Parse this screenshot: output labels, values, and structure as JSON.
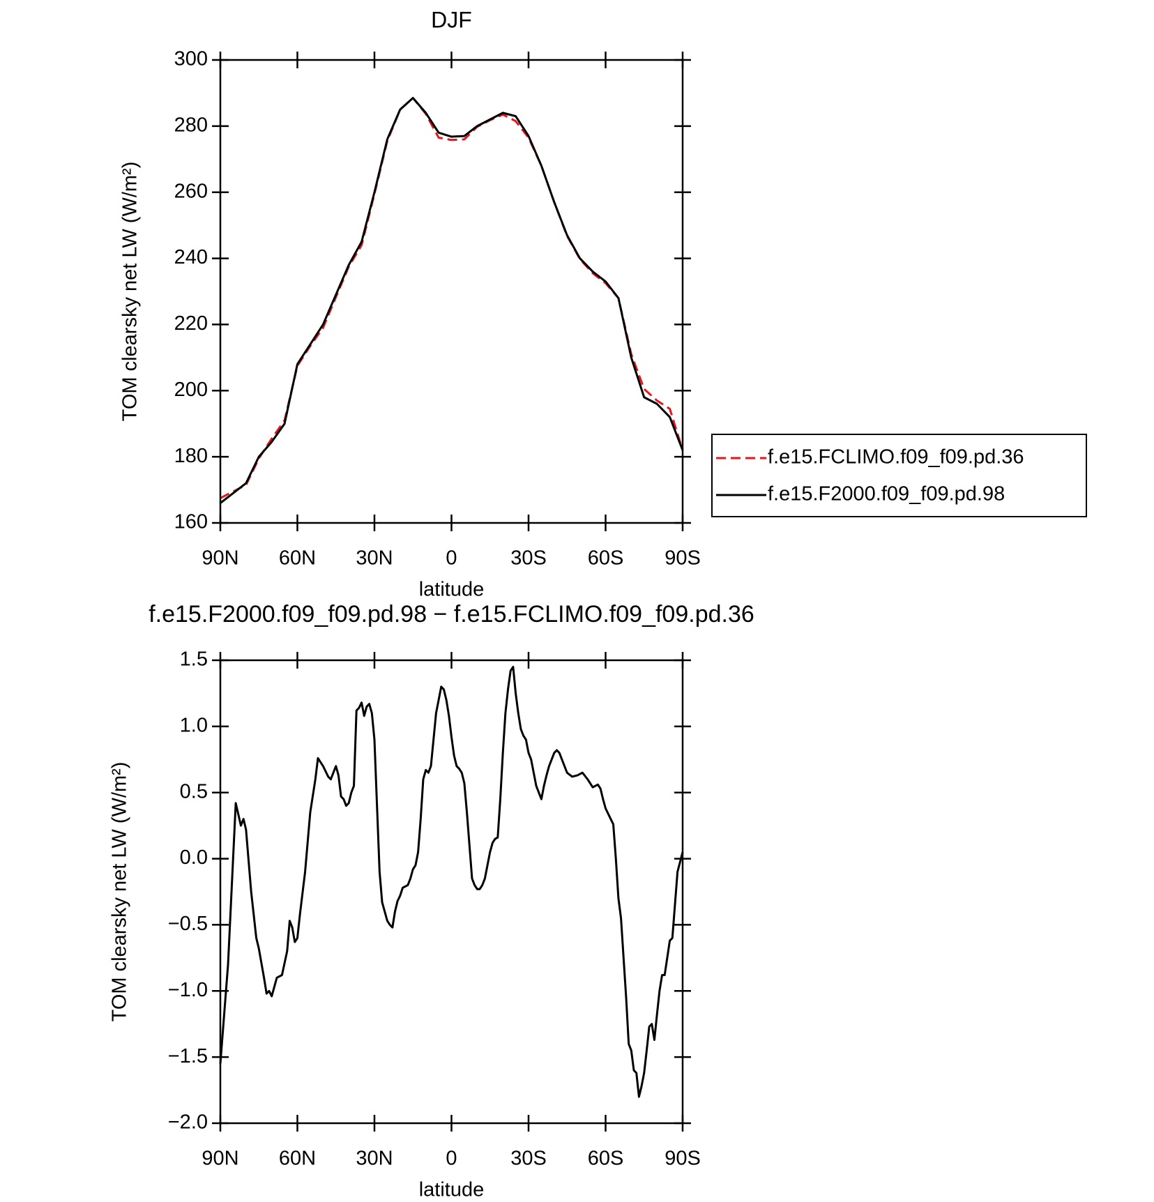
{
  "chart_data": [
    {
      "type": "line",
      "title": "DJF",
      "xlabel": "latitude",
      "ylabel": "TOM clearsky net LW (W/m²)",
      "xlim": [
        90,
        -90
      ],
      "xticks": [
        {
          "value": 90,
          "label": "90N"
        },
        {
          "value": 60,
          "label": "60N"
        },
        {
          "value": 30,
          "label": "30N"
        },
        0,
        {
          "value": -30,
          "label": "30S"
        },
        {
          "value": -60,
          "label": "60S"
        },
        {
          "value": -90,
          "label": "90S"
        }
      ],
      "ylim": [
        160,
        300
      ],
      "yticks": [
        160,
        180,
        200,
        220,
        240,
        260,
        280,
        300
      ],
      "legend": "right",
      "x": [
        90,
        85,
        80,
        75,
        70,
        65,
        60,
        55,
        50,
        45,
        40,
        35,
        30,
        25,
        20,
        15,
        10,
        5,
        0,
        -5,
        -10,
        -15,
        -20,
        -25,
        -30,
        -35,
        -40,
        -45,
        -50,
        -55,
        -60,
        -65,
        -70,
        -75,
        -80,
        -85,
        -90
      ],
      "series": [
        {
          "name": "f.e15.FCLIMO.f09_f09.pd.36",
          "color": "#e8161b",
          "line_style": "dashed",
          "values": [
            167.5,
            169.5,
            171.5,
            179.5,
            185.5,
            191,
            207.5,
            213.5,
            219,
            228.3,
            237.5,
            244,
            259.5,
            275.5,
            285,
            288.5,
            283.7,
            276.5,
            275.8,
            276,
            279.8,
            281.8,
            283.5,
            281.5,
            276.5,
            268,
            257,
            246.8,
            239.8,
            235.5,
            232.5,
            228,
            211,
            200.5,
            197,
            194.5,
            182
          ]
        },
        {
          "name": "f.e15.F2000.f09_f09.pd.98",
          "color": "#000000",
          "line_style": "solid",
          "values": [
            166,
            169,
            172,
            180,
            184.5,
            190,
            208,
            214,
            220,
            229,
            238,
            245,
            260,
            276,
            285,
            288.5,
            284,
            278,
            276.8,
            277,
            280,
            282,
            284,
            283,
            277,
            268,
            257,
            247,
            240,
            236,
            233,
            228,
            210,
            198,
            196,
            192,
            182
          ]
        }
      ]
    },
    {
      "type": "line",
      "title": "f.e15.F2000.f09_f09.pd.98 − f.e15.FCLIMO.f09_f09.pd.36",
      "xlabel": "latitude",
      "ylabel": "TOM clearsky net LW (W/m²)",
      "xlim": [
        90,
        -90
      ],
      "xticks": [
        {
          "value": 90,
          "label": "90N"
        },
        {
          "value": 60,
          "label": "60N"
        },
        {
          "value": 30,
          "label": "30N"
        },
        0,
        {
          "value": -30,
          "label": "30S"
        },
        {
          "value": -60,
          "label": "60S"
        },
        {
          "value": -90,
          "label": "90S"
        }
      ],
      "ylim": [
        -2.0,
        1.5
      ],
      "yticks": [
        {
          "value": -2.0,
          "label": "−2.0"
        },
        {
          "value": -1.5,
          "label": "−1.5"
        },
        {
          "value": -1.0,
          "label": "−1.0"
        },
        {
          "value": -0.5,
          "label": "−0.5"
        },
        {
          "value": 0.0,
          "label": "0.0"
        },
        0.5,
        {
          "value": 1.0,
          "label": "1.0"
        },
        1.5
      ],
      "x": [
        90,
        87,
        84,
        82,
        81,
        80,
        78,
        76,
        75,
        73,
        72,
        71,
        70,
        68,
        66,
        64,
        63,
        62,
        61,
        60,
        59,
        57,
        55,
        53,
        52,
        50,
        48,
        47,
        46,
        45,
        44,
        43,
        42,
        41,
        40,
        39,
        38,
        37,
        36,
        35,
        34,
        33,
        32,
        31,
        30,
        29,
        28,
        27,
        26,
        25,
        24,
        23,
        22,
        21,
        20,
        19,
        17,
        16,
        15,
        14,
        13,
        12,
        11,
        10,
        9,
        8,
        7,
        6,
        5,
        4,
        3,
        2,
        1,
        0,
        -1,
        -2,
        -3,
        -4,
        -5,
        -6,
        -7,
        -8,
        -9,
        -10,
        -11,
        -12,
        -13,
        -14,
        -15,
        -16,
        -17,
        -18,
        -19,
        -20,
        -21,
        -22,
        -23,
        -24,
        -25,
        -26,
        -27,
        -28,
        -29,
        -30,
        -31,
        -32,
        -33,
        -34,
        -35,
        -36,
        -37,
        -38,
        -40,
        -41,
        -42,
        -43,
        -44,
        -45,
        -47,
        -49,
        -51,
        -53,
        -55,
        -57,
        -58,
        -59,
        -60,
        -62,
        -63,
        -64,
        -65,
        -66,
        -67,
        -68,
        -69,
        -70,
        -71,
        -72,
        -73,
        -74,
        -75,
        -76,
        -77,
        -78,
        -79,
        -80,
        -81,
        -82,
        -83,
        -84,
        -85,
        -86,
        -87,
        -88,
        -90
      ],
      "series": [
        {
          "color": "#000000",
          "line_style": "solid",
          "values": [
            -1.55,
            -0.8,
            0.42,
            0.25,
            0.3,
            0.22,
            -0.25,
            -0.6,
            -0.68,
            -0.9,
            -1.02,
            -1.0,
            -1.04,
            -0.9,
            -0.88,
            -0.7,
            -0.47,
            -0.52,
            -0.63,
            -0.6,
            -0.42,
            -0.1,
            0.35,
            0.6,
            0.76,
            0.7,
            0.62,
            0.6,
            0.65,
            0.7,
            0.63,
            0.47,
            0.45,
            0.4,
            0.42,
            0.5,
            0.55,
            1.12,
            1.14,
            1.18,
            1.08,
            1.15,
            1.17,
            1.1,
            0.9,
            0.4,
            -0.1,
            -0.33,
            -0.4,
            -0.47,
            -0.5,
            -0.52,
            -0.4,
            -0.32,
            -0.28,
            -0.22,
            -0.2,
            -0.15,
            -0.08,
            -0.05,
            0.05,
            0.3,
            0.6,
            0.67,
            0.65,
            0.7,
            0.9,
            1.1,
            1.2,
            1.3,
            1.28,
            1.2,
            1.08,
            0.92,
            0.78,
            0.7,
            0.68,
            0.65,
            0.57,
            0.35,
            0.1,
            -0.15,
            -0.2,
            -0.23,
            -0.23,
            -0.2,
            -0.15,
            -0.05,
            0.05,
            0.12,
            0.15,
            0.16,
            0.45,
            0.8,
            1.1,
            1.28,
            1.42,
            1.45,
            1.25,
            1.1,
            0.98,
            0.93,
            0.9,
            0.8,
            0.75,
            0.65,
            0.55,
            0.5,
            0.45,
            0.55,
            0.63,
            0.7,
            0.8,
            0.82,
            0.8,
            0.75,
            0.7,
            0.65,
            0.62,
            0.63,
            0.65,
            0.6,
            0.54,
            0.56,
            0.53,
            0.45,
            0.38,
            0.3,
            0.26,
            0.0,
            -0.3,
            -0.45,
            -0.75,
            -1.05,
            -1.4,
            -1.45,
            -1.6,
            -1.62,
            -1.8,
            -1.72,
            -1.62,
            -1.45,
            -1.27,
            -1.25,
            -1.37,
            -1.18,
            -1.0,
            -0.88,
            -0.88,
            -0.75,
            -0.62,
            -0.6,
            -0.35,
            -0.1,
            0.05
          ]
        }
      ]
    }
  ]
}
